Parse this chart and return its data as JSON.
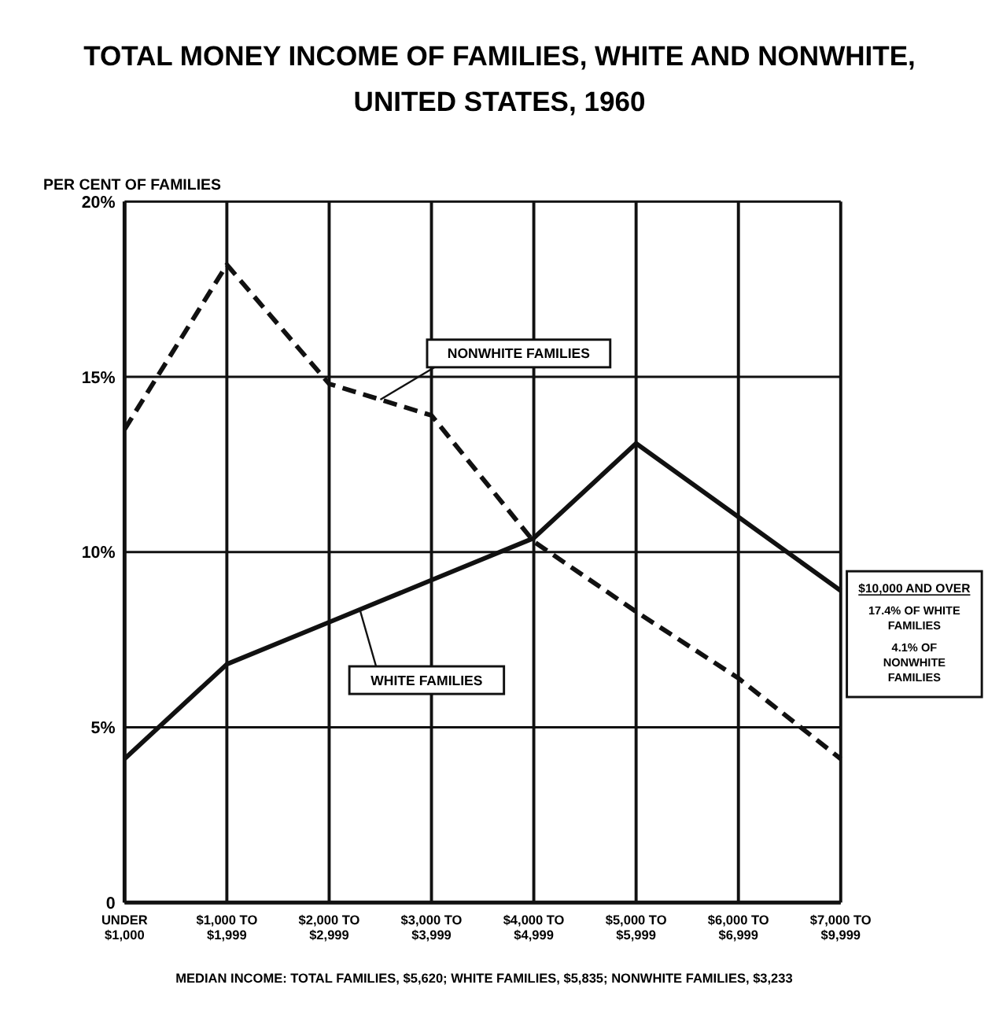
{
  "chart_data": {
    "type": "line",
    "title": "TOTAL MONEY INCOME OF FAMILIES, WHITE AND NONWHITE, UNITED STATES, 1960",
    "ylabel": "PER CENT OF FAMILIES",
    "categories": [
      "UNDER $1,000",
      "$1,000 TO $1,999",
      "$2,000 TO $2,999",
      "$3,000 TO $3,999",
      "$4,000 TO $4,999",
      "$5,000 TO $5,999",
      "$6,000 TO $6,999",
      "$7,000 TO $9,999"
    ],
    "series": [
      {
        "name": "NONWHITE FAMILIES",
        "color": "#111111",
        "line_style": "dashed",
        "values": [
          13.5,
          18.2,
          14.8,
          13.9,
          10.3,
          8.3,
          6.4,
          4.1
        ]
      },
      {
        "name": "WHITE FAMILIES",
        "color": "#111111",
        "line_style": "solid",
        "values": [
          4.1,
          6.8,
          8.0,
          9.2,
          10.4,
          13.1,
          11.0,
          8.9
        ]
      }
    ],
    "ylim": [
      0,
      20
    ],
    "yticks": [
      {
        "value": 0,
        "label": "0"
      },
      {
        "value": 5,
        "label": "5%"
      },
      {
        "value": 10,
        "label": "10%"
      },
      {
        "value": 15,
        "label": "15%"
      },
      {
        "value": 20,
        "label": "20%"
      }
    ],
    "grid": true,
    "annotations": [
      "$10,000 AND OVER",
      "17.4% OF WHITE FAMILIES",
      "4.1% OF NONWHITE FAMILIES",
      "MEDIAN INCOME: TOTAL FAMILIES, $5,620; WHITE FAMILIES, $5,835; NONWHITE FAMILIES, $3,233"
    ]
  }
}
